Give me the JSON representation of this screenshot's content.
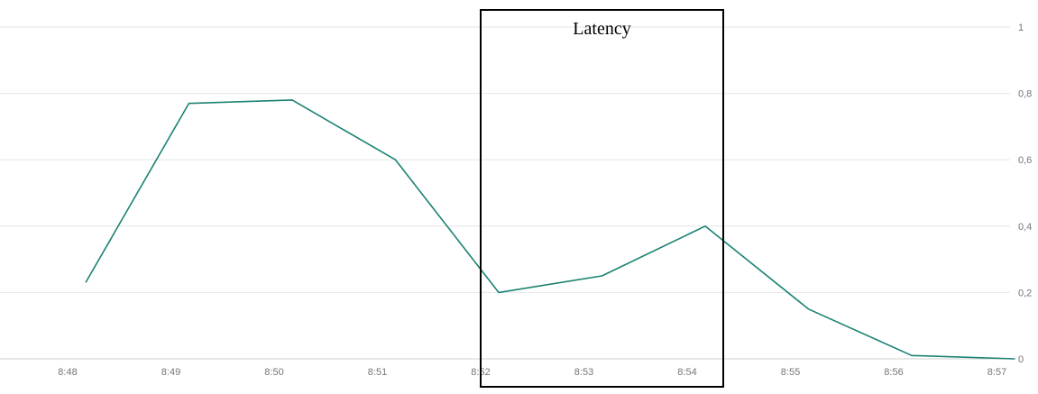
{
  "chart_data": {
    "type": "line",
    "title": "",
    "xlabel": "",
    "ylabel": "",
    "x": [
      "8:48",
      "8:49",
      "8:50",
      "8:51",
      "8:52",
      "8:53",
      "8:54",
      "8:55",
      "8:56",
      "8:57"
    ],
    "series": [
      {
        "values": [
          0.23,
          0.77,
          0.78,
          0.6,
          0.2,
          0.25,
          0.4,
          0.15,
          0.01,
          0.0
        ],
        "color": "#1a8273"
      }
    ],
    "ylim": [
      0,
      1
    ],
    "y_ticks": [
      "0",
      "0,2",
      "0,4",
      "0,6",
      "0,8",
      "1"
    ],
    "y_axis_side": "right",
    "grid": true,
    "annotation": {
      "label": "Latency",
      "x_range": [
        "8:52",
        "8:54"
      ]
    }
  },
  "colors": {
    "grid": "#e6e6e6",
    "axis": "#cfcfcf",
    "line": "#1a8273",
    "box": "#000000"
  }
}
